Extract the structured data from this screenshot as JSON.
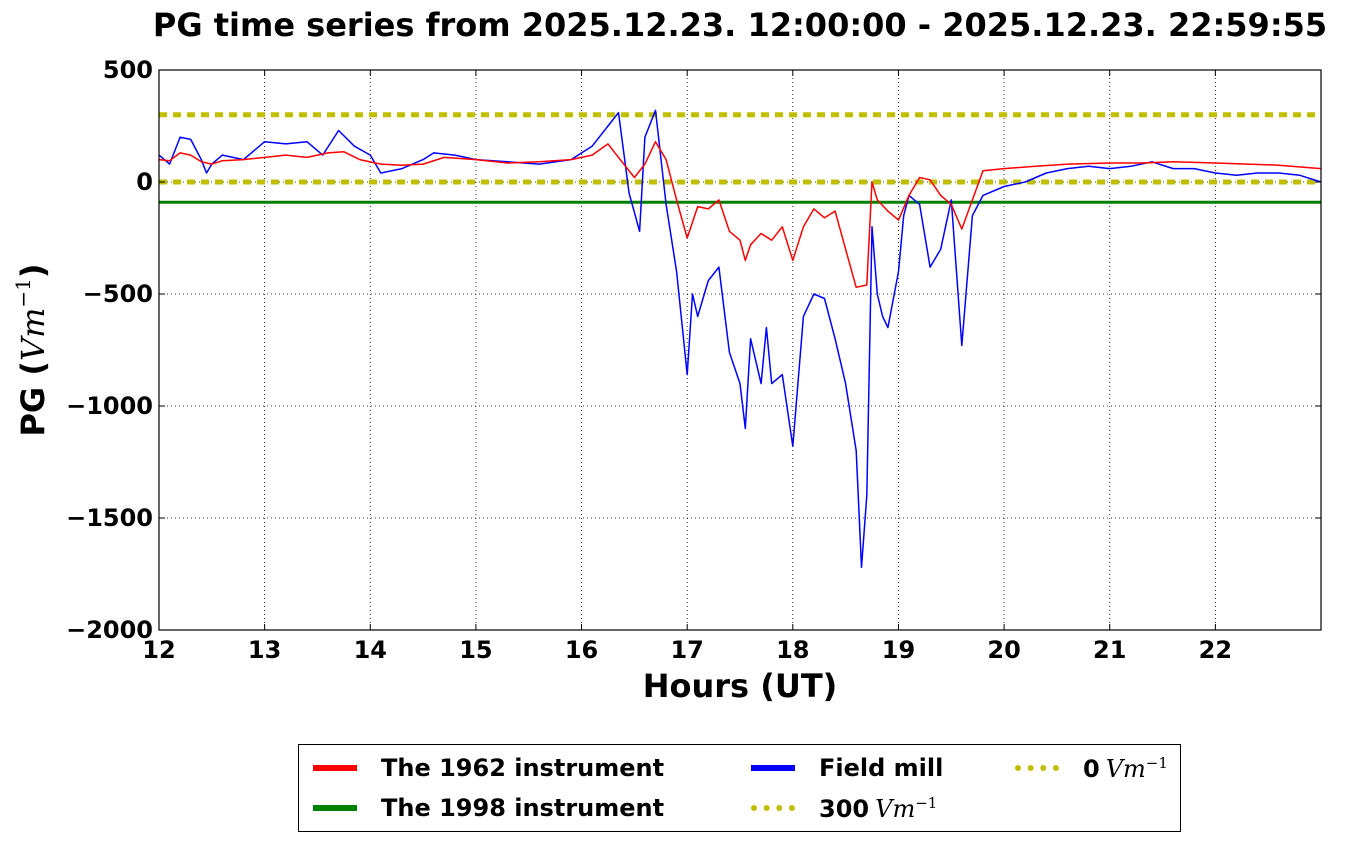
{
  "chart_data": {
    "type": "line",
    "title": "PG time series from 2025.12.23. 12:00:00 - 2025.12.23. 22:59:55",
    "xlabel": "Hours (UT)",
    "ylabel": "PG (",
    "ylabel_unit": "Vm",
    "ylabel_exp": "−1",
    "ylabel_close": ")",
    "xlim": [
      12,
      23
    ],
    "ylim": [
      -2000,
      500
    ],
    "xticks": [
      12,
      13,
      14,
      15,
      16,
      17,
      18,
      19,
      20,
      21,
      22
    ],
    "xtick_labels": [
      "12",
      "13",
      "14",
      "15",
      "16",
      "17",
      "18",
      "19",
      "20",
      "21",
      "22"
    ],
    "yticks": [
      -2000,
      -1500,
      -1000,
      -500,
      0,
      500
    ],
    "ytick_labels": [
      "−2000",
      "−1500",
      "−1000",
      "−500",
      "0",
      "500"
    ],
    "grid": true,
    "legend_position": "below",
    "series": [
      {
        "name": "The 1962 instrument",
        "color": "#ff0000",
        "style": "solid",
        "x": [
          12.0,
          12.1,
          12.2,
          12.3,
          12.4,
          12.5,
          12.6,
          12.8,
          13.0,
          13.2,
          13.4,
          13.6,
          13.75,
          13.9,
          14.1,
          14.3,
          14.5,
          14.7,
          15.0,
          15.3,
          15.6,
          15.9,
          16.1,
          16.25,
          16.35,
          16.5,
          16.6,
          16.7,
          16.8,
          16.9,
          17.0,
          17.1,
          17.2,
          17.3,
          17.4,
          17.5,
          17.55,
          17.6,
          17.7,
          17.8,
          17.9,
          18.0,
          18.1,
          18.2,
          18.3,
          18.4,
          18.5,
          18.6,
          18.7,
          18.75,
          18.8,
          18.9,
          19.0,
          19.1,
          19.2,
          19.3,
          19.4,
          19.5,
          19.6,
          19.7,
          19.8,
          20.0,
          20.3,
          20.6,
          21.0,
          21.3,
          21.6,
          22.0,
          22.3,
          22.6,
          23.0
        ],
        "y": [
          100,
          95,
          130,
          120,
          90,
          80,
          95,
          100,
          110,
          120,
          110,
          130,
          135,
          100,
          80,
          75,
          80,
          110,
          100,
          85,
          90,
          100,
          120,
          170,
          110,
          20,
          80,
          180,
          100,
          -80,
          -250,
          -110,
          -120,
          -80,
          -220,
          -260,
          -350,
          -280,
          -230,
          -260,
          -200,
          -350,
          -200,
          -120,
          -160,
          -130,
          -300,
          -470,
          -460,
          0,
          -80,
          -130,
          -170,
          -60,
          20,
          10,
          -60,
          -100,
          -210,
          -80,
          50,
          60,
          70,
          80,
          85,
          85,
          90,
          85,
          80,
          75,
          60
        ]
      },
      {
        "name": "The 1998 instrument",
        "color": "#008000",
        "style": "solid",
        "x": [
          12,
          23
        ],
        "y": [
          -90,
          -90
        ]
      },
      {
        "name": "Field mill",
        "color": "#0000ff",
        "style": "solid",
        "x": [
          12.0,
          12.1,
          12.2,
          12.3,
          12.4,
          12.45,
          12.5,
          12.6,
          12.8,
          13.0,
          13.2,
          13.4,
          13.55,
          13.7,
          13.85,
          14.0,
          14.1,
          14.3,
          14.5,
          14.6,
          14.8,
          15.0,
          15.3,
          15.6,
          15.9,
          16.1,
          16.25,
          16.35,
          16.45,
          16.55,
          16.6,
          16.7,
          16.8,
          16.9,
          17.0,
          17.05,
          17.1,
          17.2,
          17.3,
          17.4,
          17.5,
          17.55,
          17.6,
          17.7,
          17.75,
          17.8,
          17.9,
          18.0,
          18.1,
          18.2,
          18.3,
          18.4,
          18.5,
          18.6,
          18.65,
          18.7,
          18.75,
          18.8,
          18.85,
          18.9,
          19.0,
          19.05,
          19.1,
          19.2,
          19.3,
          19.4,
          19.5,
          19.6,
          19.7,
          19.8,
          20.0,
          20.2,
          20.4,
          20.6,
          20.8,
          21.0,
          21.2,
          21.4,
          21.6,
          21.8,
          22.0,
          22.2,
          22.4,
          22.6,
          22.8,
          23.0
        ],
        "y": [
          120,
          80,
          200,
          190,
          100,
          40,
          80,
          120,
          100,
          180,
          170,
          180,
          120,
          230,
          160,
          120,
          40,
          60,
          100,
          130,
          120,
          100,
          90,
          80,
          100,
          160,
          250,
          310,
          -50,
          -220,
          200,
          320,
          -100,
          -400,
          -860,
          -500,
          -600,
          -440,
          -380,
          -760,
          -900,
          -1100,
          -700,
          -900,
          -650,
          -900,
          -860,
          -1180,
          -600,
          -500,
          -520,
          -700,
          -900,
          -1200,
          -1720,
          -1400,
          -200,
          -500,
          -600,
          -650,
          -400,
          -150,
          -60,
          -100,
          -380,
          -300,
          -80,
          -730,
          -150,
          -60,
          -20,
          0,
          40,
          60,
          70,
          60,
          70,
          90,
          60,
          60,
          40,
          30,
          40,
          40,
          30,
          0
        ]
      },
      {
        "name": "300",
        "color": "#bfbf00",
        "style": "dotted",
        "x": [
          12,
          23
        ],
        "y": [
          300,
          300
        ]
      },
      {
        "name": "0",
        "color": "#bfbf00",
        "style": "dotted",
        "x": [
          12,
          23
        ],
        "y": [
          0,
          0
        ]
      }
    ],
    "legend": {
      "unit": "Vm",
      "unit_exp": "−1"
    }
  }
}
